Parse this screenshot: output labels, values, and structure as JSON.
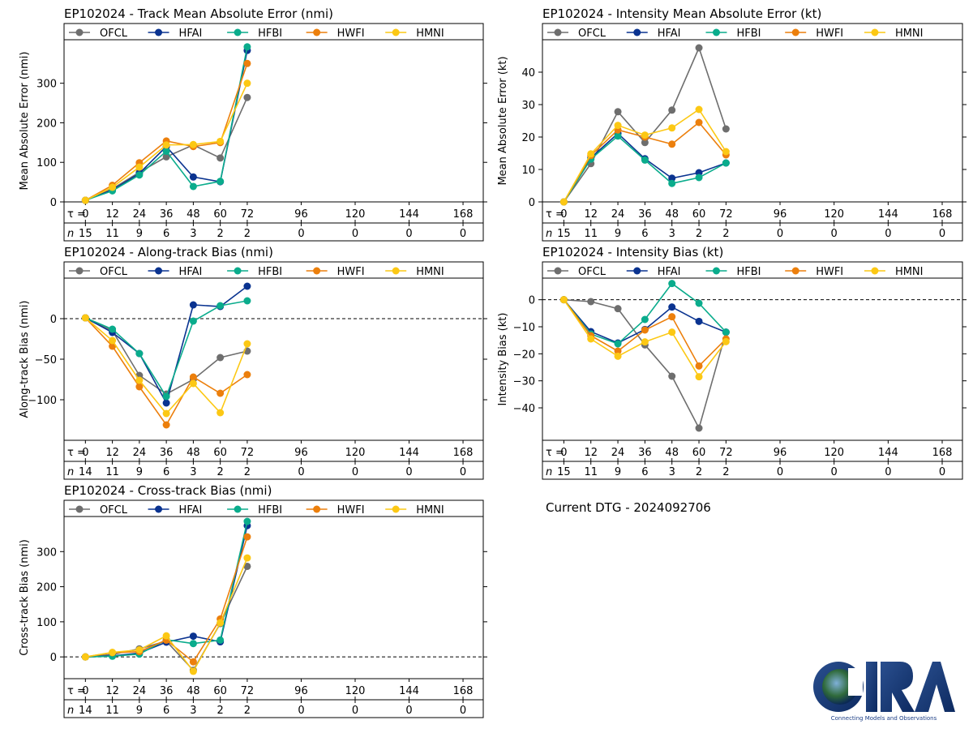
{
  "colors": {
    "OFCL": "#6e6e6e",
    "HFAI": "#0a3390",
    "HFBI": "#0aac8c",
    "HWFI": "#ec7f0c",
    "HMNI": "#fcc814"
  },
  "legend_labels": [
    "OFCL",
    "HFAI",
    "HFBI",
    "HWFI",
    "HMNI"
  ],
  "tau_label": "τ = ",
  "n_label": "n",
  "tau_values": [
    "0",
    "12",
    "24",
    "36",
    "48",
    "60",
    "72",
    "96",
    "120",
    "144",
    "168"
  ],
  "current_dtg": "Current DTG - 2024092706",
  "logo": {
    "text": "CIRA",
    "tagline": "Connecting Models and Observations"
  },
  "chart_data": [
    {
      "id": "track_mae",
      "type": "line",
      "title": "EP102024 - Track Mean Absolute Error (nmi)",
      "ylabel": "Mean Absolute Error (nmi)",
      "x": [
        0,
        12,
        24,
        36,
        48,
        60,
        72
      ],
      "ylim": [
        0,
        410
      ],
      "yticks": [
        0,
        100,
        200,
        300
      ],
      "zero_line": false,
      "n_values": [
        "15",
        "11",
        "9",
        "6",
        "3",
        "2",
        "2",
        "0",
        "0",
        "0",
        "0"
      ],
      "series": [
        {
          "name": "OFCL",
          "values": [
            4,
            33,
            75,
            114,
            144,
            111,
            264
          ]
        },
        {
          "name": "HFAI",
          "values": [
            4,
            30,
            72,
            140,
            63,
            51,
            383
          ]
        },
        {
          "name": "HFBI",
          "values": [
            4,
            28,
            68,
            128,
            39,
            52,
            392
          ]
        },
        {
          "name": "HWFI",
          "values": [
            4,
            42,
            99,
            154,
            140,
            150,
            350
          ]
        },
        {
          "name": "HMNI",
          "values": [
            4,
            37,
            88,
            144,
            145,
            153,
            300
          ]
        }
      ]
    },
    {
      "id": "intensity_mae",
      "type": "line",
      "title": "EP102024 - Intensity Mean Absolute Error (kt)",
      "ylabel": "Mean Absolute Error (kt)",
      "x": [
        0,
        12,
        24,
        36,
        48,
        60,
        72
      ],
      "ylim": [
        0,
        50
      ],
      "yticks": [
        0,
        10,
        20,
        30,
        40
      ],
      "zero_line": false,
      "n_values": [
        "15",
        "11",
        "9",
        "6",
        "3",
        "2",
        "2",
        "0",
        "0",
        "0",
        "0"
      ],
      "series": [
        {
          "name": "OFCL",
          "values": [
            0,
            11.8,
            27.8,
            18.3,
            28.3,
            47.5,
            22.5
          ]
        },
        {
          "name": "HFAI",
          "values": [
            0,
            13.6,
            21.1,
            13.3,
            7.3,
            9.0,
            12.0
          ]
        },
        {
          "name": "HFBI",
          "values": [
            0,
            13.2,
            20.3,
            12.9,
            5.7,
            7.5,
            12.0
          ]
        },
        {
          "name": "HWFI",
          "values": [
            0,
            14.3,
            22.2,
            20.0,
            17.8,
            24.5,
            14.5
          ]
        },
        {
          "name": "HMNI",
          "values": [
            0,
            14.8,
            23.6,
            20.6,
            22.8,
            28.5,
            15.5
          ]
        }
      ]
    },
    {
      "id": "along_bias",
      "type": "line",
      "title": "EP102024 - Along-track Bias (nmi)",
      "ylabel": "Along-track Bias (nmi)",
      "x": [
        0,
        12,
        24,
        36,
        48,
        60,
        72
      ],
      "ylim": [
        -150,
        50
      ],
      "yticks": [
        -100,
        -50,
        0
      ],
      "zero_line": true,
      "n_values": [
        "14",
        "11",
        "9",
        "6",
        "3",
        "2",
        "2",
        "0",
        "0",
        "0",
        "0"
      ],
      "series": [
        {
          "name": "OFCL",
          "values": [
            1,
            -15,
            -70,
            -93,
            -75,
            -48,
            -40
          ]
        },
        {
          "name": "HFAI",
          "values": [
            1,
            -17,
            -43,
            -104,
            17,
            15,
            40
          ]
        },
        {
          "name": "HFBI",
          "values": [
            1,
            -13,
            -43,
            -96,
            -3,
            16,
            22
          ]
        },
        {
          "name": "HWFI",
          "values": [
            1,
            -34,
            -84,
            -131,
            -72,
            -92,
            -69
          ]
        },
        {
          "name": "HMNI",
          "values": [
            1,
            -27,
            -76,
            -117,
            -80,
            -116,
            -31
          ]
        }
      ]
    },
    {
      "id": "intensity_bias",
      "type": "line",
      "title": "EP102024 - Intensity Bias (kt)",
      "ylabel": "Intensity Bias (kt)",
      "x": [
        0,
        12,
        24,
        36,
        48,
        60,
        72
      ],
      "ylim": [
        -52,
        8
      ],
      "yticks": [
        -40,
        -30,
        -20,
        -10,
        0
      ],
      "zero_line": true,
      "n_values": [
        "15",
        "11",
        "9",
        "6",
        "3",
        "2",
        "2",
        "0",
        "0",
        "0",
        "0"
      ],
      "series": [
        {
          "name": "OFCL",
          "values": [
            0,
            -0.7,
            -3.3,
            -16.7,
            -28.3,
            -47.5,
            -12.0
          ]
        },
        {
          "name": "HFAI",
          "values": [
            0,
            -11.8,
            -16.0,
            -11.0,
            -2.7,
            -8.0,
            -12.0
          ]
        },
        {
          "name": "HFBI",
          "values": [
            0,
            -12.7,
            -16.3,
            -7.3,
            6.0,
            -1.3,
            -12.0
          ]
        },
        {
          "name": "HWFI",
          "values": [
            0,
            -13.3,
            -19.0,
            -11.2,
            -6.3,
            -24.5,
            -14.5
          ]
        },
        {
          "name": "HMNI",
          "values": [
            0,
            -14.5,
            -20.9,
            -15.6,
            -12.0,
            -28.5,
            -15.5
          ]
        }
      ]
    },
    {
      "id": "cross_bias",
      "type": "line",
      "title": "EP102024 - Cross-track Bias (nmi)",
      "ylabel": "Cross-track Bias (nmi)",
      "x": [
        0,
        12,
        24,
        36,
        48,
        60,
        72
      ],
      "ylim": [
        -62,
        400
      ],
      "yticks": [
        0,
        100,
        200,
        300
      ],
      "zero_line": true,
      "n_values": [
        "14",
        "11",
        "9",
        "6",
        "3",
        "2",
        "2",
        "0",
        "0",
        "0",
        "0"
      ],
      "series": [
        {
          "name": "OFCL",
          "values": [
            0,
            7,
            23,
            45,
            -38,
            95,
            258
          ]
        },
        {
          "name": "HFAI",
          "values": [
            0,
            3,
            11,
            42,
            59,
            43,
            374
          ]
        },
        {
          "name": "HFBI",
          "values": [
            0,
            2,
            8,
            49,
            38,
            48,
            386
          ]
        },
        {
          "name": "HWFI",
          "values": [
            0,
            12,
            15,
            48,
            -14,
            108,
            342
          ]
        },
        {
          "name": "HMNI",
          "values": [
            0,
            13,
            20,
            60,
            -41,
            97,
            282
          ]
        }
      ]
    }
  ]
}
